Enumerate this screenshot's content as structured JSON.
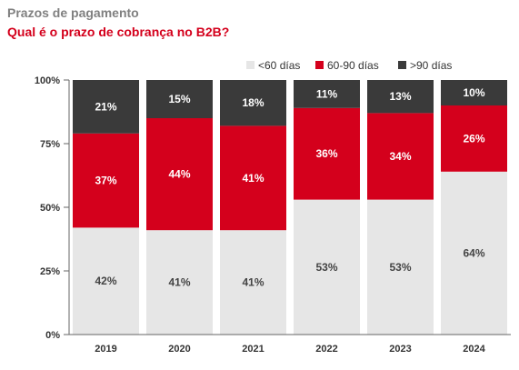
{
  "title": "Prazos de pagamento",
  "subtitle": "Qual é o prazo de cobrança no B2B?",
  "chart_data": {
    "type": "bar",
    "stacked": true,
    "categories": [
      "2019",
      "2020",
      "2021",
      "2022",
      "2023",
      "2024"
    ],
    "series": [
      {
        "name": "<60 días",
        "color": "#e6e6e6",
        "label_color": "#444444",
        "values": [
          42,
          41,
          41,
          53,
          53,
          64
        ],
        "labels": [
          "42%",
          "41%",
          "41%",
          "53%",
          "53%",
          "64%"
        ]
      },
      {
        "name": "60-90 días",
        "color": "#d4001c",
        "label_color": "#ffffff",
        "values": [
          37,
          44,
          41,
          36,
          34,
          26
        ],
        "labels": [
          "37%",
          "44%",
          "41%",
          "36%",
          "34%",
          "26%"
        ]
      },
      {
        "name": ">90 días",
        "color": "#3a3a3a",
        "label_color": "#ffffff",
        "values": [
          21,
          15,
          18,
          11,
          13,
          10
        ],
        "labels": [
          "21%",
          "15%",
          "18%",
          "11%",
          "13%",
          "10%"
        ]
      }
    ],
    "ylim": [
      0,
      100
    ],
    "yticks": [
      "0%",
      "25%",
      "50%",
      "75%",
      "100%"
    ],
    "grid": false,
    "legend_position": "top-right"
  }
}
